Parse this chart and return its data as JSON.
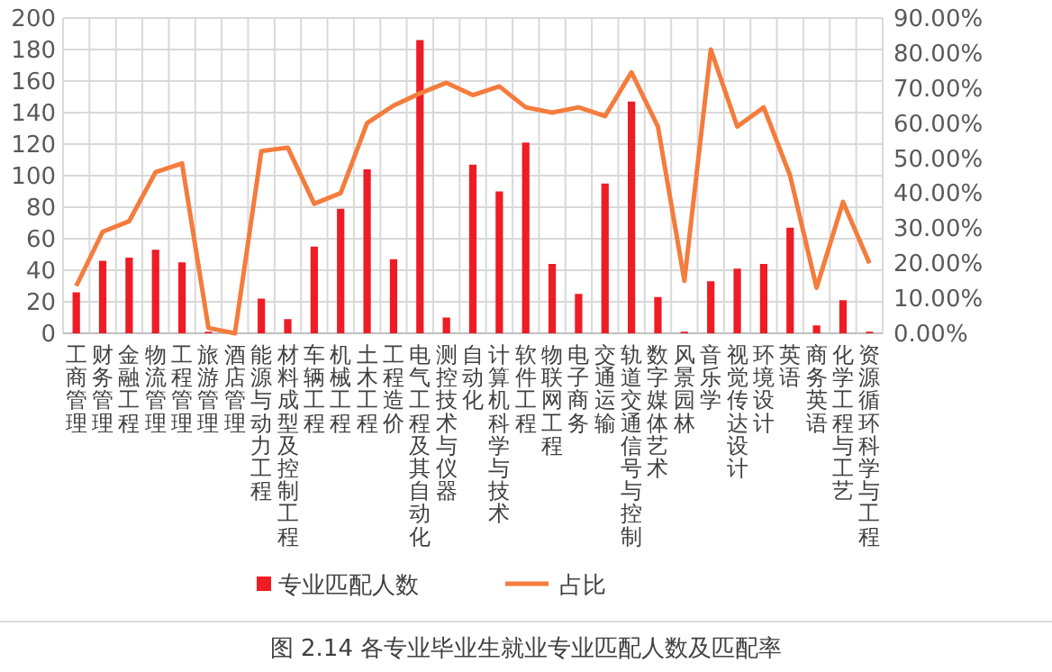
{
  "chart_data": {
    "type": "bar",
    "title": "图 2.14 各专业毕业生就业专业匹配人数及匹配率",
    "categories": [
      "工商管理",
      "财务管理",
      "金融工程",
      "物流管理",
      "工程管理",
      "旅游管理",
      "酒店管理",
      "能源与动力工程",
      "材料成型及控制工程",
      "车辆工程",
      "机械工程",
      "土木工程",
      "工程造价",
      "电气工程及其自动化",
      "测控技术与仪器",
      "自动化",
      "计算机科学与技术",
      "软件工程",
      "物联网工程",
      "电子商务",
      "交通运输",
      "轨道交通信号与控制",
      "数字媒体艺术",
      "风景园林",
      "音乐学",
      "视觉传达设计",
      "环境设计",
      "英语",
      "商务英语",
      "化学工程与工艺",
      "资源循环科学与工程"
    ],
    "series": [
      {
        "name": "专业匹配人数",
        "color": "#ee1c25",
        "values": [
          26,
          46,
          48,
          53,
          45,
          1,
          0,
          22,
          9,
          55,
          79,
          104,
          47,
          186,
          10,
          107,
          90,
          121,
          44,
          25,
          95,
          147,
          23,
          1,
          33,
          41,
          44,
          67,
          5,
          21,
          1
        ]
      },
      {
        "name": "占比",
        "type": "line",
        "axis": "y2",
        "color": "#f47c3c",
        "values": [
          13.5,
          29,
          32,
          46,
          48.5,
          1.5,
          0,
          52,
          53,
          37,
          40,
          60,
          65,
          68.5,
          71.5,
          68,
          70.5,
          64.5,
          63,
          64.5,
          62,
          74.5,
          59,
          15,
          81,
          59,
          64.5,
          45,
          13,
          37.5,
          20
        ]
      }
    ],
    "ylim": [
      0,
      200
    ],
    "yticks": [
      0,
      20,
      40,
      60,
      80,
      100,
      120,
      140,
      160,
      180,
      200
    ],
    "y2lim": [
      0,
      90
    ],
    "y2ticks": [
      {
        "value": 0,
        "label": "0.00%"
      },
      {
        "value": 10,
        "label": "10.00%"
      },
      {
        "value": 20,
        "label": "20.00%"
      },
      {
        "value": 30,
        "label": "30.00%"
      },
      {
        "value": 40,
        "label": "40.00%"
      },
      {
        "value": 50,
        "label": "50.00%"
      },
      {
        "value": 60,
        "label": "60.00%"
      },
      {
        "value": 70,
        "label": "70.00%"
      },
      {
        "value": 80,
        "label": "80.00%"
      },
      {
        "value": 90,
        "label": "90.00%"
      }
    ],
    "grid": true,
    "legend": "bottom",
    "marker": "none",
    "line_style": "solid"
  }
}
